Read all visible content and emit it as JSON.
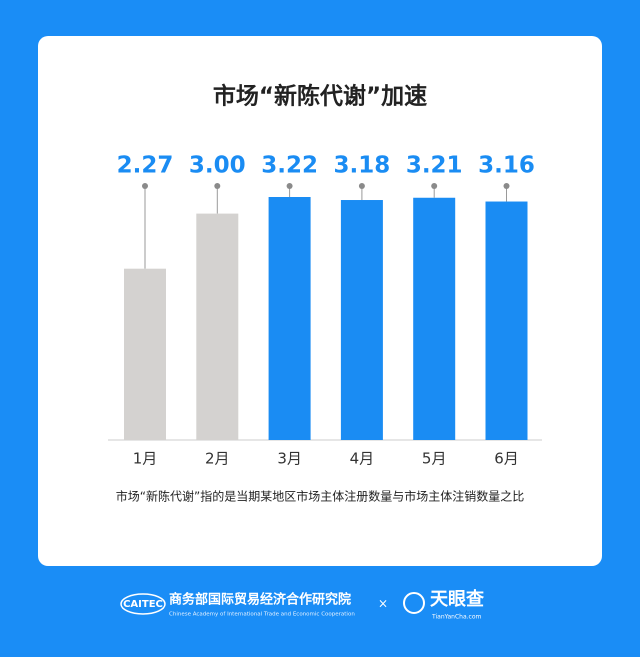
{
  "chart_data": {
    "type": "bar",
    "title": "市场“新陈代谢”加速",
    "categories": [
      "1月",
      "2月",
      "3月",
      "4月",
      "5月",
      "6月"
    ],
    "values": [
      2.27,
      3.0,
      3.22,
      3.18,
      3.21,
      3.16
    ],
    "value_labels": [
      "2.27",
      "3.00",
      "3.22",
      "3.18",
      "3.21",
      "3.16"
    ],
    "colors": [
      "#d4d2d0",
      "#d4d2d0",
      "#1a8cf3",
      "#1a8cf3",
      "#1a8cf3",
      "#1a8cf3"
    ],
    "note": "市场“新陈代谢”指的是当期某地区市场主体注册数量与市场主体注销数量之比"
  },
  "footer": {
    "org_logo": "CAITEC",
    "org_name": "商务部国际贸易经济合作研究院",
    "org_name_en": "Chinese Academy of International Trade and Economic Cooperation",
    "separator": "×",
    "brand": "天眼查",
    "brand_url": "TianYanCha.com"
  }
}
